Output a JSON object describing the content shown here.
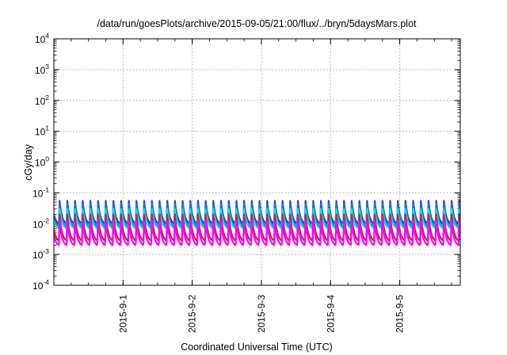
{
  "chart_data": {
    "type": "line",
    "title": "/data/run/goesPlots/archive/2015-09-05/21:00/flux/../bryn/5daysMars.plot",
    "xlabel": "Coordinated Universal Time (UTC)",
    "ylabel": "cGy/day",
    "yscale": "log",
    "ylim_exponents": [
      -4,
      4
    ],
    "y_ticks": [
      {
        "base": "10",
        "exp": "4"
      },
      {
        "base": "10",
        "exp": "3"
      },
      {
        "base": "10",
        "exp": "2"
      },
      {
        "base": "10",
        "exp": "1"
      },
      {
        "base": "10",
        "exp": "0"
      },
      {
        "base": "10",
        "exp": "-1"
      },
      {
        "base": "10",
        "exp": "-2"
      },
      {
        "base": "10",
        "exp": "-3"
      },
      {
        "base": "10",
        "exp": "-4"
      }
    ],
    "x_range": [
      "2015-08-31T00:00",
      "2015-09-05T21:00"
    ],
    "x_ticks": [
      "2015-9-1",
      "2015-9-2",
      "2015-9-3",
      "2015-9-4",
      "2015-9-5"
    ],
    "grid": true,
    "oscillation_cycles_per_day": 9,
    "series": [
      {
        "color": "#ff00ff",
        "min": 0.002,
        "max": 0.012
      },
      {
        "color": "#cc1f3f",
        "min": 0.0028,
        "max": 0.02
      },
      {
        "color": "#00e5ee",
        "min": 0.007,
        "max": 0.03
      },
      {
        "color": "#1f6fdc",
        "min": 0.008,
        "max": 0.045
      },
      {
        "color": "#2040c0",
        "min": 0.01,
        "max": 0.055
      }
    ]
  }
}
